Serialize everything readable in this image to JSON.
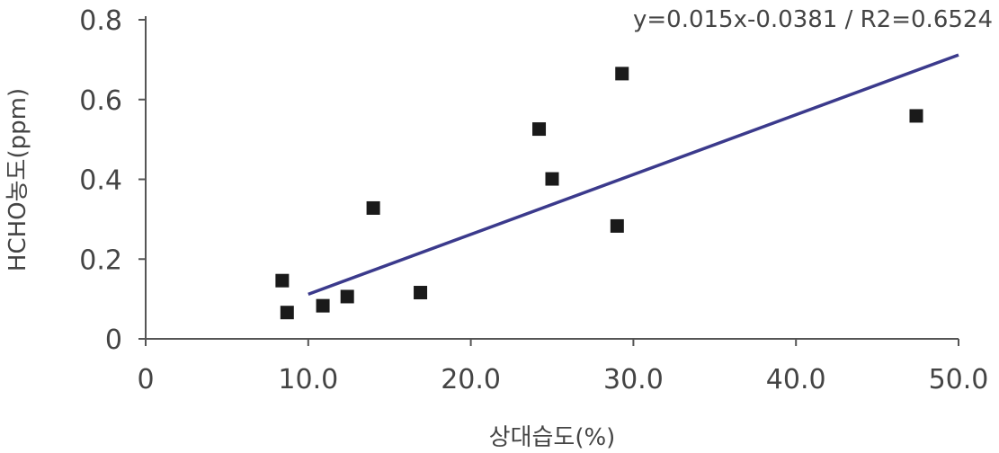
{
  "chart_data": {
    "type": "scatter",
    "equation": "y=0.015x-0.0381 / R2=0.6524",
    "xlabel": "상대습도(%)",
    "ylabel": "HCHO농도(ppm)",
    "xlim": [
      0,
      50
    ],
    "ylim": [
      0,
      0.8
    ],
    "x_ticks": [
      "0",
      "10.0",
      "20.0",
      "30.0",
      "40.0",
      "50.0"
    ],
    "x_tick_values": [
      0,
      10,
      20,
      30,
      40,
      50
    ],
    "y_ticks": [
      "0",
      "0.2",
      "0.4",
      "0.6",
      "0.8"
    ],
    "y_tick_values": [
      0,
      0.2,
      0.4,
      0.6,
      0.8
    ],
    "grid": false,
    "points": [
      {
        "x": 8.4,
        "y": 0.146
      },
      {
        "x": 8.7,
        "y": 0.066
      },
      {
        "x": 10.9,
        "y": 0.083
      },
      {
        "x": 12.4,
        "y": 0.106
      },
      {
        "x": 14.0,
        "y": 0.328
      },
      {
        "x": 16.9,
        "y": 0.116
      },
      {
        "x": 24.2,
        "y": 0.526
      },
      {
        "x": 25.0,
        "y": 0.401
      },
      {
        "x": 29.0,
        "y": 0.283
      },
      {
        "x": 29.3,
        "y": 0.665
      },
      {
        "x": 47.4,
        "y": 0.559
      }
    ],
    "trendline": {
      "slope": 0.015,
      "intercept": -0.0381,
      "x_start": 10,
      "x_end": 50
    },
    "colors": {
      "marker": "#1a1a1a",
      "trendline": "#3b3a8c",
      "axis": "#555555"
    }
  }
}
